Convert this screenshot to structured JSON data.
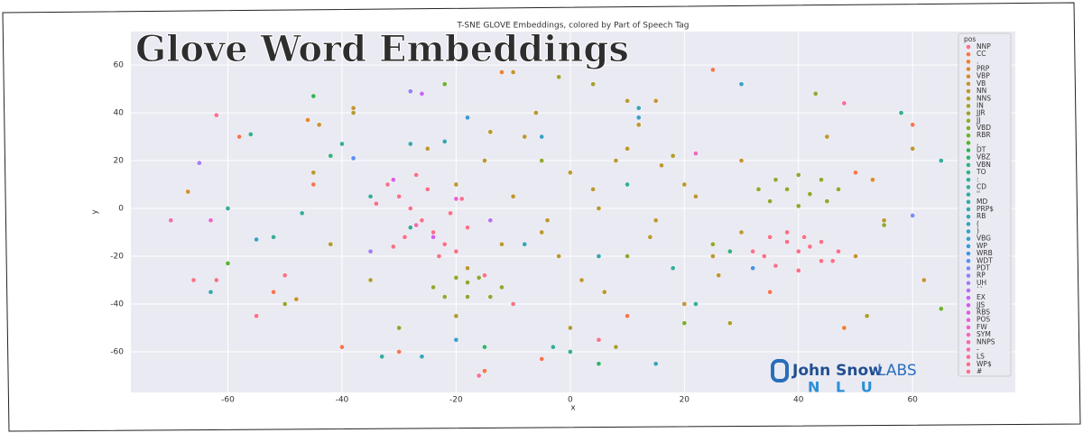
{
  "banner": "Glove Word Embeddings",
  "logo": {
    "name": "John Snow",
    "suffix": "LABS",
    "product": "N L U"
  },
  "chart_data": {
    "type": "scatter",
    "title": "T-SNE GLOVE Embeddings, colored by Part of Speech Tag",
    "x_label": "x",
    "y_label": "y",
    "legend_title": "pos",
    "legend": "upper right",
    "grid": true,
    "xlim": [
      -77,
      78
    ],
    "ylim": [
      -77,
      74
    ],
    "xticks": [
      -60,
      -40,
      -20,
      0,
      20,
      40,
      60
    ],
    "yticks": [
      -60,
      -40,
      -20,
      0,
      20,
      40,
      60
    ],
    "series": [
      {
        "name": "NNP",
        "color": "#f77189",
        "x": [
          -32,
          -30,
          -28,
          -26,
          -24,
          -22,
          -20,
          -34,
          -29,
          -25,
          -21,
          -18,
          -27,
          -23,
          -31,
          -19,
          -15,
          -10,
          5,
          -50,
          -62,
          -55,
          -66,
          32,
          35,
          38,
          41,
          44,
          47,
          36,
          40,
          44,
          34,
          46,
          40,
          38,
          42
        ],
        "y": [
          10,
          5,
          0,
          -5,
          -10,
          -15,
          -18,
          2,
          -12,
          8,
          -2,
          -8,
          14,
          -20,
          -16,
          4,
          -28,
          -40,
          -55,
          -28,
          -30,
          -45,
          -30,
          -18,
          -12,
          -10,
          -12,
          -14,
          -18,
          -24,
          -26,
          -22,
          -20,
          -22,
          -18,
          -14,
          -16
        ]
      },
      {
        "name": "CC",
        "color": "#f7754f",
        "x": [
          -58,
          -45,
          -40,
          -30,
          25,
          50,
          60,
          -5,
          -15,
          10,
          -52,
          35
        ],
        "y": [
          30,
          10,
          -58,
          -60,
          58,
          15,
          35,
          -63,
          -68,
          -45,
          -35,
          -35
        ]
      },
      {
        "name": ".",
        "color": "#ec7f35",
        "x": [
          -12,
          48
        ],
        "y": [
          57,
          -50
        ]
      },
      {
        "name": "PRP",
        "color": "#dd8832",
        "x": [
          -46,
          53
        ],
        "y": [
          37,
          12
        ]
      },
      {
        "name": "VBP",
        "color": "#d08e32",
        "x": [
          -67,
          62
        ],
        "y": [
          7,
          -30
        ]
      },
      {
        "name": "VB",
        "color": "#c69432",
        "x": [
          -38,
          -10,
          15,
          20,
          30,
          -48,
          -44,
          50
        ],
        "y": [
          42,
          57,
          45,
          -40,
          20,
          -38,
          35,
          -20
        ]
      },
      {
        "name": "NN",
        "color": "#bb9831",
        "x": [
          -20,
          -15,
          -10,
          -5,
          0,
          5,
          10,
          15,
          20,
          25,
          -18,
          -8,
          2,
          12,
          22,
          -12,
          -2,
          8,
          18,
          -25,
          30,
          -6,
          4,
          14,
          -14,
          6,
          16,
          26,
          -4,
          10,
          45,
          55,
          60,
          -45,
          -38
        ],
        "y": [
          10,
          20,
          5,
          -10,
          15,
          0,
          25,
          -5,
          10,
          -20,
          -25,
          30,
          -30,
          35,
          5,
          -15,
          -20,
          20,
          -25,
          25,
          -10,
          40,
          8,
          -12,
          32,
          -35,
          18,
          -28,
          -5,
          45,
          30,
          -5,
          25,
          15,
          40
        ]
      },
      {
        "name": "NNS",
        "color": "#b19c31",
        "x": [
          -35,
          -20,
          0,
          18,
          28,
          -42,
          52
        ],
        "y": [
          -30,
          -45,
          -50,
          22,
          -48,
          -15,
          -45
        ]
      },
      {
        "name": "IN",
        "color": "#a6a031",
        "x": [
          -2,
          4,
          8
        ],
        "y": [
          55,
          52,
          -58
        ]
      },
      {
        "name": "JJR",
        "color": "#9ba431",
        "x": [
          -50,
          43
        ],
        "y": [
          -40,
          48
        ]
      },
      {
        "name": "JJ",
        "color": "#8ea931",
        "x": [
          33,
          36,
          40,
          44,
          47,
          35,
          45,
          40,
          38,
          42,
          -24,
          -20,
          -16,
          -12,
          -22,
          -14,
          -18,
          -18,
          10,
          -5,
          25,
          55
        ],
        "y": [
          8,
          12,
          14,
          12,
          8,
          3,
          3,
          1,
          8,
          6,
          -33,
          -29,
          -29,
          -33,
          -37,
          -37,
          -31,
          -37,
          -20,
          20,
          -15,
          -7
        ]
      },
      {
        "name": "VBD",
        "color": "#80ad31",
        "x": [
          -30,
          20
        ],
        "y": [
          -50,
          -48
        ]
      },
      {
        "name": "RBR",
        "color": "#6fb131",
        "x": [
          -22,
          65
        ],
        "y": [
          52,
          -42
        ]
      },
      {
        "name": ",",
        "color": "#56b631",
        "x": [
          -60
        ],
        "y": [
          -23
        ]
      },
      {
        "name": "DT",
        "color": "#33b553",
        "x": [
          -45,
          -3
        ],
        "y": [
          47,
          -58
        ]
      },
      {
        "name": "VBZ",
        "color": "#34b36f",
        "x": [
          -15,
          5
        ],
        "y": [
          -58,
          -65
        ]
      },
      {
        "name": "VBN",
        "color": "#35b17f",
        "x": [
          -42,
          28
        ],
        "y": [
          22,
          -18
        ]
      },
      {
        "name": "TO",
        "color": "#35b08a",
        "x": [
          -56
        ],
        "y": [
          31
        ]
      },
      {
        "name": ":",
        "color": "#36ae93",
        "x": [
          58
        ],
        "y": [
          40
        ]
      },
      {
        "name": "CD",
        "color": "#36ad9b",
        "x": [
          -40,
          -47,
          -52,
          -35,
          -28,
          0,
          18,
          22,
          65,
          -60,
          -3,
          10
        ],
        "y": [
          27,
          -2,
          -12,
          5,
          -8,
          -60,
          -25,
          -40,
          20,
          0,
          -58,
          10
        ]
      },
      {
        "name": "''",
        "color": "#37aba2",
        "x": [
          -33
        ],
        "y": [
          -62
        ]
      },
      {
        "name": "MD",
        "color": "#37aaa8",
        "x": [
          30
        ],
        "y": [
          52
        ]
      },
      {
        "name": "PRP$",
        "color": "#38a8ae",
        "x": [
          -63
        ],
        "y": [
          -35
        ]
      },
      {
        "name": "RB",
        "color": "#38a6b4",
        "x": [
          -28,
          -22,
          5,
          12,
          -26,
          -8
        ],
        "y": [
          27,
          28,
          -20,
          42,
          -62,
          -15
        ]
      },
      {
        "name": "(",
        "color": "#39a4bb",
        "x": [
          15
        ],
        "y": [
          -65
        ]
      },
      {
        "name": ")",
        "color": "#3aa2c3",
        "x": [
          -55
        ],
        "y": [
          -13
        ]
      },
      {
        "name": "VBG",
        "color": "#3b9fcc",
        "x": [
          -38,
          -20,
          30,
          12,
          -5
        ],
        "y": [
          21,
          -55,
          52,
          38,
          30
        ]
      },
      {
        "name": "WP",
        "color": "#3d9bd7",
        "x": [
          -18
        ],
        "y": [
          38
        ]
      },
      {
        "name": "WRB",
        "color": "#4296e5",
        "x": [
          32
        ],
        "y": [
          -25
        ]
      },
      {
        "name": "WDT",
        "color": "#5890f2",
        "x": [
          -38
        ],
        "y": [
          21
        ]
      },
      {
        "name": "PDT",
        "color": "#7a8af5",
        "x": [
          60
        ],
        "y": [
          -3
        ]
      },
      {
        "name": "RP",
        "color": "#9183f4",
        "x": [
          -28
        ],
        "y": [
          49
        ]
      },
      {
        "name": "UH",
        "color": "#a47bf4",
        "x": [
          -65,
          -35
        ],
        "y": [
          19,
          -18
        ]
      },
      {
        "name": "``",
        "color": "#b570f4",
        "x": [
          -14
        ],
        "y": [
          -5
        ]
      },
      {
        "name": "EX",
        "color": "#c465f4",
        "x": [
          -26
        ],
        "y": [
          48
        ]
      },
      {
        "name": "JJS",
        "color": "#d15ff0",
        "x": [
          -24
        ],
        "y": [
          -12
        ]
      },
      {
        "name": "RBS",
        "color": "#dc5fe3",
        "x": [
          -31
        ],
        "y": [
          12
        ]
      },
      {
        "name": "POS",
        "color": "#e363d6",
        "x": [
          -20
        ],
        "y": [
          4
        ]
      },
      {
        "name": "FW",
        "color": "#e966c9",
        "x": [
          -63
        ],
        "y": [
          -5
        ]
      },
      {
        "name": "SYM",
        "color": "#ee69bd",
        "x": [
          22
        ],
        "y": [
          23
        ]
      },
      {
        "name": "NNPS",
        "color": "#f16bb1",
        "x": [
          -27
        ],
        "y": [
          -7
        ]
      },
      {
        "name": "-",
        "color": "#f36da6",
        "x": [
          -70
        ],
        "y": [
          -5
        ]
      },
      {
        "name": "LS",
        "color": "#f56e9c",
        "x": [
          48
        ],
        "y": [
          44
        ]
      },
      {
        "name": "WP$",
        "color": "#f67093",
        "x": [
          -16
        ],
        "y": [
          -70
        ]
      },
      {
        "name": "#",
        "color": "#f7718d",
        "x": [
          -62
        ],
        "y": [
          39
        ]
      }
    ]
  }
}
